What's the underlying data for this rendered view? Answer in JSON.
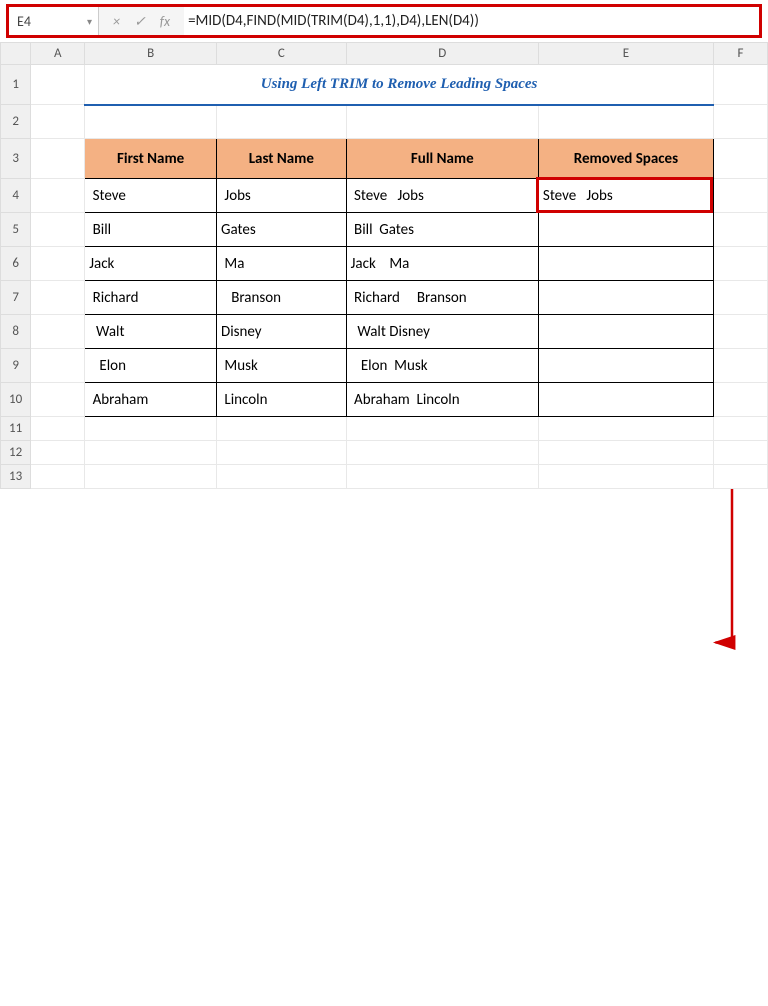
{
  "namebox": {
    "value": "E4"
  },
  "formula_bar": {
    "cancel_icon": "×",
    "enter_icon": "✓",
    "fx_icon": "fx",
    "formula": "=MID(D4,FIND(MID(TRIM(D4),1,1),D4),LEN(D4))"
  },
  "columns": [
    "A",
    "B",
    "C",
    "D",
    "E",
    "F"
  ],
  "rows": [
    "1",
    "2",
    "3",
    "4",
    "5",
    "6",
    "7",
    "8",
    "9",
    "10",
    "11",
    "12",
    "13"
  ],
  "title": "Using Left TRIM to Remove Leading Spaces",
  "headers": {
    "first": "First Name",
    "last": "Last Name",
    "full": "Full Name",
    "removed": "Removed Spaces"
  },
  "data": [
    {
      "first": " Steve",
      "last": " Jobs",
      "full": " Steve   Jobs",
      "removed": "Steve   Jobs"
    },
    {
      "first": " Bill",
      "last": "Gates",
      "full": " Bill  Gates",
      "removed": ""
    },
    {
      "first": "Jack",
      "last": " Ma",
      "full": "Jack    Ma",
      "removed": ""
    },
    {
      "first": " Richard",
      "last": "   Branson",
      "full": " Richard     Branson",
      "removed": ""
    },
    {
      "first": "  Walt",
      "last": "Disney",
      "full": "  Walt Disney",
      "removed": ""
    },
    {
      "first": "   Elon",
      "last": " Musk",
      "full": "   Elon  Musk",
      "removed": ""
    },
    {
      "first": " Abraham",
      "last": " Lincoln",
      "full": " Abraham  Lincoln",
      "removed": ""
    }
  ],
  "colors": {
    "highlight_border": "#d00000",
    "header_fill": "#f4b183",
    "title_color": "#1f5fb0",
    "grid_border": "#e8e8e8",
    "data_border": "#000000"
  },
  "highlight_cell": "E4"
}
